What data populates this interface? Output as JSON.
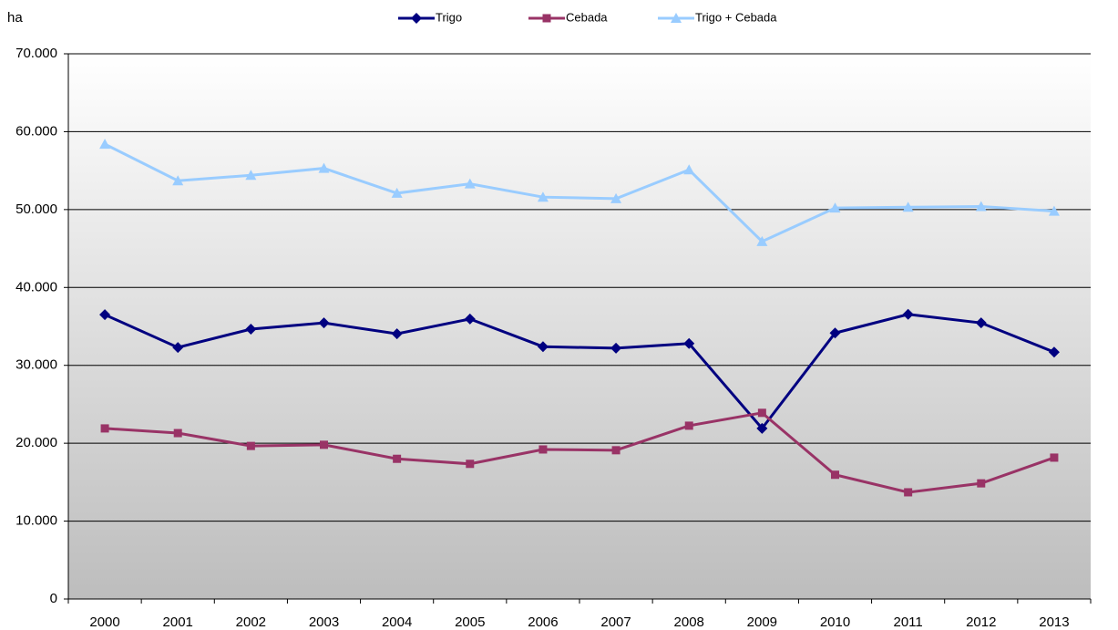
{
  "chart_data": {
    "type": "line",
    "ylabel": "ha",
    "categories": [
      "2000",
      "2001",
      "2002",
      "2003",
      "2004",
      "2005",
      "2006",
      "2007",
      "2008",
      "2009",
      "2010",
      "2011",
      "2012",
      "2013"
    ],
    "series": [
      {
        "name": "Trigo",
        "color": "#000080",
        "marker": "diamond",
        "values": [
          36500,
          32300,
          34650,
          35450,
          34050,
          35950,
          32400,
          32200,
          32800,
          21900,
          34150,
          36550,
          35450,
          31700
        ]
      },
      {
        "name": "Cebada",
        "color": "#993366",
        "marker": "square",
        "values": [
          21900,
          21300,
          19650,
          19800,
          18000,
          17350,
          19200,
          19100,
          22250,
          23900,
          15950,
          13700,
          14850,
          18150
        ]
      },
      {
        "name": "Trigo + Cebada",
        "color": "#99ccff",
        "marker": "triangle",
        "values": [
          58400,
          53700,
          54400,
          55300,
          52100,
          53300,
          51600,
          51400,
          55100,
          45900,
          50200,
          50300,
          50400,
          49800
        ]
      }
    ],
    "ylim": [
      0,
      70000
    ],
    "yticks": [
      0,
      {
        "value": 10000,
        "label": "10.000"
      },
      {
        "value": 20000,
        "label": "20.000"
      },
      {
        "value": 30000,
        "label": "30.000"
      },
      {
        "value": 40000,
        "label": "40.000"
      },
      {
        "value": 50000,
        "label": "50.000"
      },
      {
        "value": 60000,
        "label": "60.000"
      },
      {
        "value": 70000,
        "label": "70.000"
      }
    ],
    "grid": true,
    "legend": "top"
  }
}
